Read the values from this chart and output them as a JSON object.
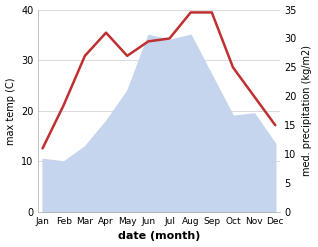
{
  "months": [
    "Jan",
    "Feb",
    "Mar",
    "Apr",
    "May",
    "Jun",
    "Jul",
    "Aug",
    "Sep",
    "Oct",
    "Nov",
    "Dec"
  ],
  "month_positions": [
    0,
    1,
    2,
    3,
    4,
    5,
    6,
    7,
    8,
    9,
    10,
    11
  ],
  "max_temp": [
    10.5,
    10.0,
    13.0,
    18.0,
    24.0,
    35.0,
    34.0,
    35.0,
    27.0,
    19.0,
    19.5,
    13.5
  ],
  "precipitation": [
    11.0,
    18.5,
    27.0,
    31.0,
    27.0,
    29.5,
    30.0,
    34.5,
    34.5,
    25.0,
    20.0,
    15.0
  ],
  "temp_fill_color": "#c5d5ee",
  "precip_color": "#c03030",
  "left_ylim": [
    0,
    40
  ],
  "right_ylim": [
    0,
    35
  ],
  "left_yticks": [
    0,
    10,
    20,
    30,
    40
  ],
  "right_yticks": [
    0,
    5,
    10,
    15,
    20,
    25,
    30,
    35
  ],
  "left_ylabel": "max temp (C)",
  "right_ylabel": "med. precipitation (kg/m2)",
  "xlabel": "date (month)",
  "bg_color": "#ffffff",
  "grid_color": "#cccccc",
  "figsize": [
    3.18,
    2.47
  ],
  "dpi": 100
}
